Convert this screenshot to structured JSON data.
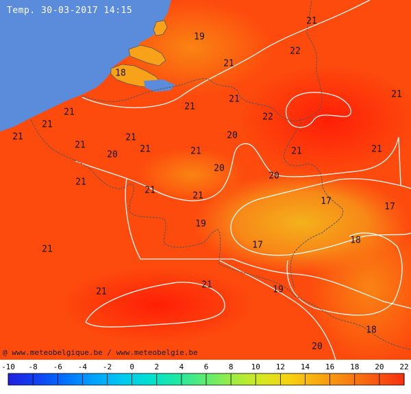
{
  "title": "Temp. 30-03-2017 14:15",
  "credit": "@ www.meteobelgique.be / www.meteobelgie.be",
  "colors": {
    "sea": "#5b8bdb",
    "land_low": "#f7a21a",
    "land_mid": "#fa6a12",
    "land_high": "#ff2e08",
    "isotherm": "#ffffff",
    "border": "#555555"
  },
  "labels": [
    {
      "id": "l01",
      "text": "21"
    },
    {
      "id": "l02",
      "text": "19"
    },
    {
      "id": "l03",
      "text": "22"
    },
    {
      "id": "l04",
      "text": "18"
    },
    {
      "id": "l05",
      "text": "21"
    },
    {
      "id": "l06",
      "text": "21"
    },
    {
      "id": "l07",
      "text": "21"
    },
    {
      "id": "l08",
      "text": "21"
    },
    {
      "id": "l09",
      "text": "22"
    },
    {
      "id": "l10",
      "text": "21"
    },
    {
      "id": "l11",
      "text": "21"
    },
    {
      "id": "l12",
      "text": "21"
    },
    {
      "id": "l13",
      "text": "21"
    },
    {
      "id": "l14",
      "text": "21"
    },
    {
      "id": "l15",
      "text": "20"
    },
    {
      "id": "l16",
      "text": "21"
    },
    {
      "id": "l17",
      "text": "21"
    },
    {
      "id": "l18",
      "text": "20"
    },
    {
      "id": "l19",
      "text": "21"
    },
    {
      "id": "l20",
      "text": "21"
    },
    {
      "id": "l21",
      "text": "20"
    },
    {
      "id": "l22",
      "text": "20"
    },
    {
      "id": "l23",
      "text": "21"
    },
    {
      "id": "l24",
      "text": "17"
    },
    {
      "id": "l25",
      "text": "17"
    },
    {
      "id": "l26",
      "text": "19"
    },
    {
      "id": "l27",
      "text": "21"
    },
    {
      "id": "l28",
      "text": "17"
    },
    {
      "id": "l29",
      "text": "18"
    },
    {
      "id": "l30",
      "text": "21"
    },
    {
      "id": "l31",
      "text": "19"
    },
    {
      "id": "l32",
      "text": "21"
    },
    {
      "id": "l33",
      "text": "18"
    },
    {
      "id": "l34",
      "text": "20"
    }
  ],
  "legend": {
    "ticks": [
      "-10",
      "-8",
      "-6",
      "-4",
      "-2",
      "0",
      "2",
      "4",
      "6",
      "8",
      "10",
      "12",
      "14",
      "16",
      "18",
      "20",
      "22"
    ],
    "colors": [
      "#2020e0",
      "#1040f0",
      "#0070ff",
      "#00a0ff",
      "#00c8f0",
      "#00e0d0",
      "#20e8a0",
      "#60ec70",
      "#a0ec40",
      "#d8e820",
      "#f8d010",
      "#f8a810",
      "#f88010",
      "#f85810",
      "#f83010"
    ]
  }
}
